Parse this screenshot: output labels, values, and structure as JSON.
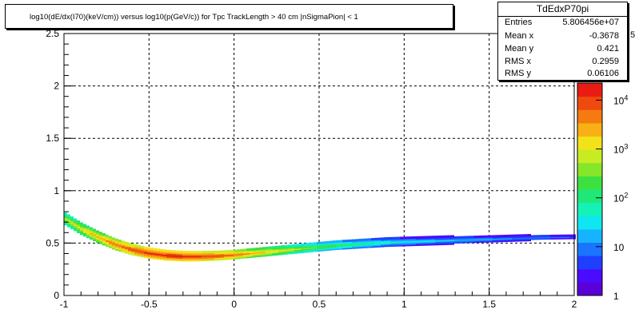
{
  "title": "log10(dE/dx(I70)(keV/cm)) versus log10(p(GeV/c)) for Tpc TrackLength > 40 cm |nSigmaPion| < 1",
  "stats": {
    "name": "TdEdxP70pi",
    "rows": [
      {
        "label": "Entries",
        "value": "5.806456e+07"
      },
      {
        "label": "Mean x",
        "value": "-0.3678"
      },
      {
        "label": "Mean y",
        "value": "0.421"
      },
      {
        "label": "RMS x",
        "value": "0.2959"
      },
      {
        "label": "RMS y",
        "value": "0.06106"
      }
    ]
  },
  "chart_data": {
    "type": "heatmap",
    "title": "log10(dE/dx(I70)(keV/cm)) versus log10(p(GeV/c)) for Tpc TrackLength > 40 cm |nSigmaPion| < 1",
    "xlim": [
      -1,
      2
    ],
    "ylim": [
      0,
      2.5
    ],
    "xticks": [
      "-1",
      "-0.5",
      "0",
      "0.5",
      "1",
      "1.5",
      "2"
    ],
    "yticks": [
      "0",
      "0.5",
      "1",
      "1.5",
      "2",
      "2.5"
    ],
    "grid": true,
    "colorbar": {
      "scale": "log",
      "labels": [
        "1",
        "10",
        "10^2",
        "10^3",
        "10^4"
      ],
      "top_exponent_label": "5"
    },
    "band": {
      "x": [
        -1.0,
        -0.9,
        -0.8,
        -0.7,
        -0.6,
        -0.5,
        -0.4,
        -0.3,
        -0.2,
        -0.1,
        0.0,
        0.1,
        0.2,
        0.3,
        0.4,
        0.5,
        0.6,
        0.7,
        0.8,
        0.9,
        1.0,
        1.2,
        1.4,
        1.6,
        1.8,
        2.0
      ],
      "y": [
        0.74,
        0.64,
        0.56,
        0.49,
        0.44,
        0.405,
        0.385,
        0.375,
        0.375,
        0.38,
        0.39,
        0.405,
        0.42,
        0.435,
        0.45,
        0.465,
        0.48,
        0.49,
        0.5,
        0.51,
        0.515,
        0.525,
        0.535,
        0.545,
        0.555,
        0.56
      ],
      "level": [
        3.2,
        3.6,
        4.0,
        4.4,
        4.7,
        4.9,
        4.95,
        4.95,
        4.85,
        4.7,
        4.5,
        4.1,
        3.8,
        3.5,
        3.1,
        2.8,
        2.6,
        2.4,
        2.2,
        2.0,
        1.8,
        1.6,
        1.4,
        1.2,
        1.0,
        0.8
      ]
    }
  }
}
